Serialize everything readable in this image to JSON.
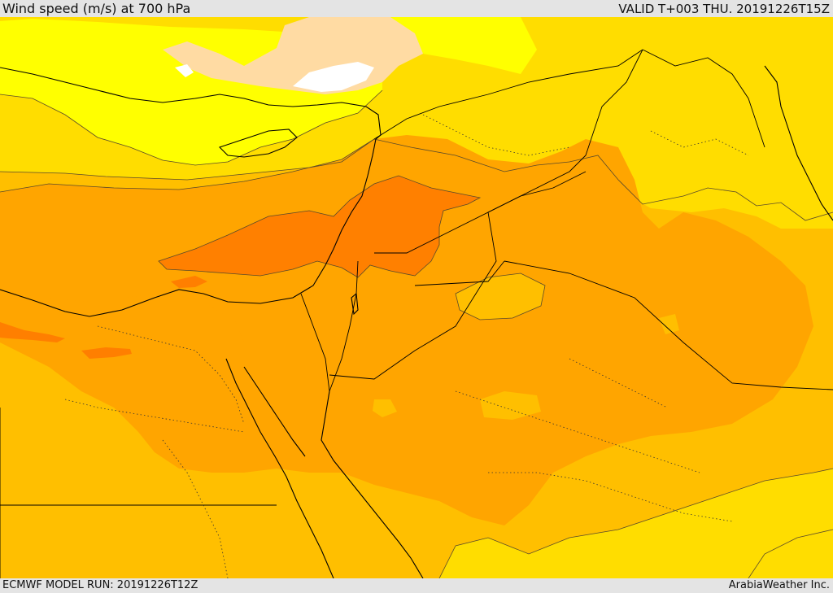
{
  "header": {
    "title": "Wind speed (m/s) at 700 hPa",
    "valid": "VALID T+003 THU. 20191226T15Z"
  },
  "footer": {
    "model_run": "ECMWF MODEL RUN: 20191226T12Z",
    "credit": "ArabiaWeather Inc."
  },
  "map": {
    "region": "Eastern Mediterranean, Levant, Egypt and northern Arabia",
    "fill_levels": {
      "lightest": "#ffff00",
      "light": "#ffdd00",
      "mid_light": "#ffbf00",
      "mid": "#ffa500",
      "strong": "#ff8000",
      "strongest": "#ff7f00",
      "calm_peach": "#ffdba3",
      "calm_white": "#ffffff"
    },
    "line_colors": {
      "coastline": "#000000",
      "border": "#000000",
      "contour": "#5a4a2a"
    }
  }
}
